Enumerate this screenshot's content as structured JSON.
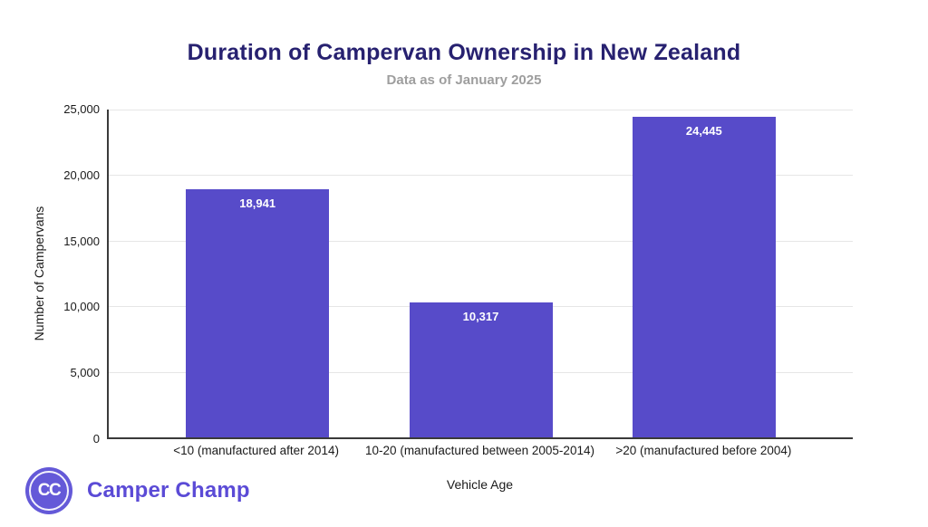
{
  "header": {
    "title": "Duration of Campervan Ownership in New Zealand",
    "subtitle": "Data as of January 2025"
  },
  "chart_data": {
    "type": "bar",
    "title": "Duration of Campervan Ownership in New Zealand",
    "subtitle": "Data as of January 2025",
    "categories": [
      "<10 (manufactured after 2014)",
      "10-20 (manufactured between 2005-2014)",
      ">20 (manufactured before 2004)"
    ],
    "values": [
      18941,
      10317,
      24445
    ],
    "value_labels": [
      "18,941",
      "10,317",
      "24,445"
    ],
    "xlabel": "Vehicle Age",
    "ylabel": "Number of Campervans",
    "ylim": [
      0,
      25000
    ],
    "yticks": [
      0,
      5000,
      10000,
      15000,
      20000,
      25000
    ],
    "ytick_labels": [
      "0",
      "5,000",
      "10,000",
      "15,000",
      "20,000",
      "25,000"
    ],
    "grid": true,
    "legend": "none",
    "bar_color": "#574bc9",
    "bar_centers_pct": [
      20,
      50,
      80
    ]
  },
  "footer": {
    "logo_initials": "CC",
    "brand_name": "Camper Champ"
  },
  "colors": {
    "title": "#272170",
    "subtitle": "#9e9e9e",
    "bar": "#574bc9",
    "bar_value_text": "#ffffff",
    "gridline": "#e6e6e6",
    "axis_line": "#3a3a3a",
    "axis_text": "#1a1a1a",
    "brand": "#5b4bd6",
    "logo_circle": "#6459d8"
  }
}
